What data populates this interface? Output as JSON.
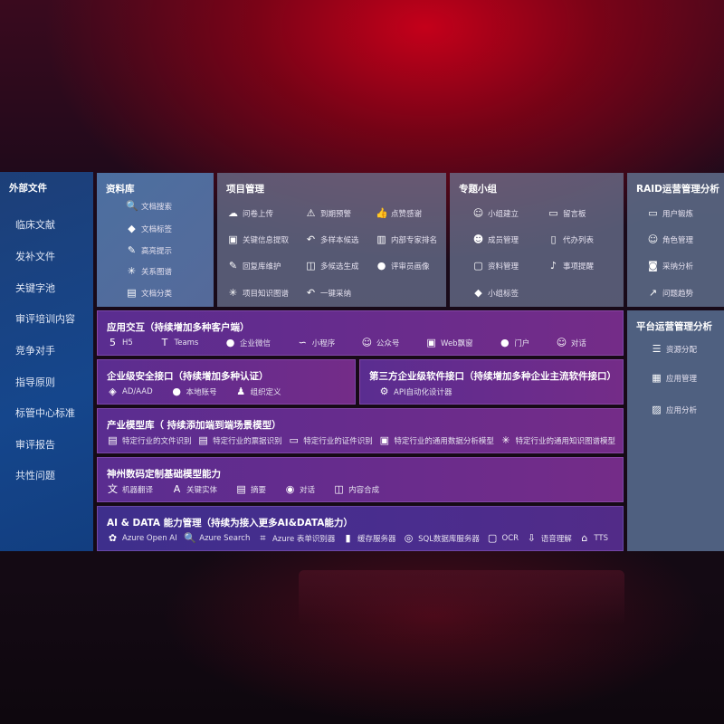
{
  "sidebar": {
    "title": "外部文件",
    "items": [
      "临床文献",
      "发补文件",
      "关键字池",
      "审评培训内容",
      "竞争对手",
      "指导原则",
      "标管中心标准",
      "审评报告",
      "共性问题"
    ]
  },
  "library": {
    "title": "资料库",
    "items": [
      {
        "label": "文档搜索",
        "icon": "doc-search-icon"
      },
      {
        "label": "文档标签",
        "icon": "tag-icon"
      },
      {
        "label": "高亮提示",
        "icon": "pen-icon"
      },
      {
        "label": "关系图谱",
        "icon": "graph-icon"
      },
      {
        "label": "文档分类",
        "icon": "doc-category-icon"
      }
    ]
  },
  "project": {
    "title": "项目管理",
    "items": [
      {
        "label": "问卷上传",
        "icon": "cloud-upload-icon"
      },
      {
        "label": "到期预警",
        "icon": "alarm-icon"
      },
      {
        "label": "点赞感谢",
        "icon": "thumbs-up-icon"
      },
      {
        "label": "关键信息提取",
        "icon": "window-icon"
      },
      {
        "label": "多样本候选",
        "icon": "reply-icon"
      },
      {
        "label": "内部专家排名",
        "icon": "ranking-icon"
      },
      {
        "label": "回复库维护",
        "icon": "pen-icon"
      },
      {
        "label": "多候选生成",
        "icon": "puzzle-icon"
      },
      {
        "label": "评审员画像",
        "icon": "user-icon"
      },
      {
        "label": "项目知识图谱",
        "icon": "graph-icon"
      },
      {
        "label": "一键采纳",
        "icon": "reply-icon"
      }
    ]
  },
  "group": {
    "title": "专题小组",
    "items": [
      {
        "label": "小组建立",
        "icon": "users-icon"
      },
      {
        "label": "留言板",
        "icon": "bbs-icon"
      },
      {
        "label": "成员管理",
        "icon": "user-add-icon"
      },
      {
        "label": "代办列表",
        "icon": "clipboard-icon"
      },
      {
        "label": "资料管理",
        "icon": "folder-icon"
      },
      {
        "label": "事项提醒",
        "icon": "bell-icon"
      },
      {
        "label": "小组标签",
        "icon": "tag-icon"
      }
    ]
  },
  "raid": {
    "title": "RAID运营管理分析",
    "items": [
      {
        "label": "用户锻炼",
        "icon": "id-card-icon"
      },
      {
        "label": "角色管理",
        "icon": "users-icon"
      },
      {
        "label": "采纳分析",
        "icon": "qa-icon"
      },
      {
        "label": "问题趋势",
        "icon": "trend-icon"
      }
    ]
  },
  "platform": {
    "title": "平台运营管理分析",
    "items": [
      {
        "label": "资源分配",
        "icon": "checklist-icon"
      },
      {
        "label": "应用管理",
        "icon": "apps-icon"
      },
      {
        "label": "应用分析",
        "icon": "analytics-icon"
      }
    ]
  },
  "app": {
    "title": "应用交互（持续增加多种客户端）",
    "items": [
      {
        "label": "H5",
        "icon": "html5-icon"
      },
      {
        "label": "Teams",
        "icon": "teams-icon"
      },
      {
        "label": "企业微信",
        "icon": "wechat-icon"
      },
      {
        "label": "小程序",
        "icon": "miniprogram-icon"
      },
      {
        "label": "公众号",
        "icon": "users-icon"
      },
      {
        "label": "Web飘窗",
        "icon": "window-icon"
      },
      {
        "label": "门户",
        "icon": "user-icon"
      },
      {
        "label": "对话",
        "icon": "chat-users-icon"
      }
    ]
  },
  "security": {
    "title": "企业级安全接口（持续增加多种认证）",
    "items": [
      {
        "label": "AD/AAD",
        "icon": "diamond-icon"
      },
      {
        "label": "本地账号",
        "icon": "user-icon"
      },
      {
        "label": "组织定义",
        "icon": "org-icon"
      }
    ]
  },
  "thirdparty": {
    "title": "第三方企业级软件接口（持续增加多种企业主流软件接口）",
    "items": [
      {
        "label": "API自动化设计器",
        "icon": "gear-icon"
      }
    ]
  },
  "industry": {
    "title": "产业模型库（ 持续添加端到端场景模型）",
    "items": [
      {
        "label": "特定行业的文件识别",
        "icon": "doc-icon"
      },
      {
        "label": "特定行业的票据识别",
        "icon": "receipt-icon"
      },
      {
        "label": "特定行业的证件识别",
        "icon": "id-card-icon"
      },
      {
        "label": "特定行业的通用数据分析模型",
        "icon": "image-icon"
      },
      {
        "label": "特定行业的通用知识图谱模型",
        "icon": "graph-icon"
      }
    ]
  },
  "base": {
    "title": "神州数码定制基础模型能力",
    "items": [
      {
        "label": "机器翻译",
        "icon": "translate-icon"
      },
      {
        "label": "关键实体",
        "icon": "entity-icon"
      },
      {
        "label": "摘要",
        "icon": "doc-icon"
      },
      {
        "label": "对话",
        "icon": "chat-icon"
      },
      {
        "label": "内容合成",
        "icon": "puzzle-icon"
      }
    ]
  },
  "ai": {
    "title": "AI & DATA 能力管理（持续为接入更多AI&DATA能力）",
    "items": [
      {
        "label": "Azure Open AI",
        "icon": "openai-icon"
      },
      {
        "label": "Azure Search",
        "icon": "doc-search-icon"
      },
      {
        "label": "Azure 表单识别器",
        "icon": "form-scan-icon"
      },
      {
        "label": "缓存服务器",
        "icon": "server-icon"
      },
      {
        "label": "SQL数据库服务器",
        "icon": "database-icon"
      },
      {
        "label": "OCR",
        "icon": "ocr-icon"
      },
      {
        "label": "语音理解",
        "icon": "speech-icon"
      },
      {
        "label": "TTS",
        "icon": "tts-icon"
      }
    ]
  }
}
